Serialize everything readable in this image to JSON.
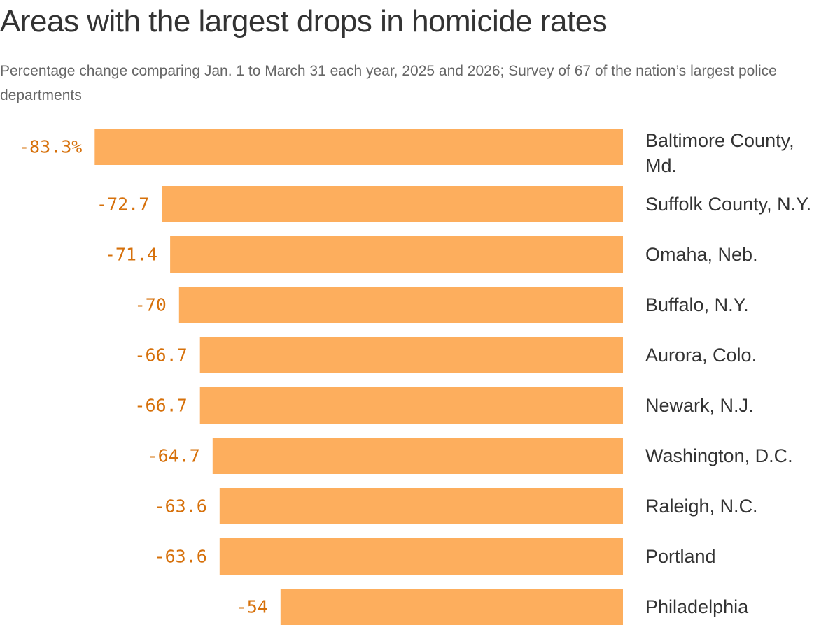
{
  "chart_data": {
    "type": "bar",
    "orientation": "horizontal",
    "title": "Areas with the largest drops in homicide rates",
    "subtitle": "Percentage change comparing Jan. 1 to March 31 each year, 2025 and 2026; Survey of 67 of the nation’s largest police departments",
    "categories": [
      [
        "Baltimore County,",
        "Md."
      ],
      [
        "Suffolk County, N.Y."
      ],
      [
        "Omaha, Neb."
      ],
      [
        "Buffalo, N.Y."
      ],
      [
        "Aurora, Colo."
      ],
      [
        "Newark, N.J."
      ],
      [
        "Washington, D.C."
      ],
      [
        "Raleigh, N.C."
      ],
      [
        "Portland"
      ],
      [
        "Philadelphia"
      ]
    ],
    "values": [
      -83.3,
      -72.7,
      -71.4,
      -70,
      -66.7,
      -66.7,
      -64.7,
      -63.6,
      -63.6,
      -54
    ],
    "value_labels": [
      "-83.3%",
      "-72.7",
      "-71.4",
      "-70",
      "-66.7",
      "-66.7",
      "-64.7",
      "-63.6",
      "-63.6",
      "-54"
    ],
    "bar_color": "#fdae5d",
    "label_color": "#d6700a"
  }
}
